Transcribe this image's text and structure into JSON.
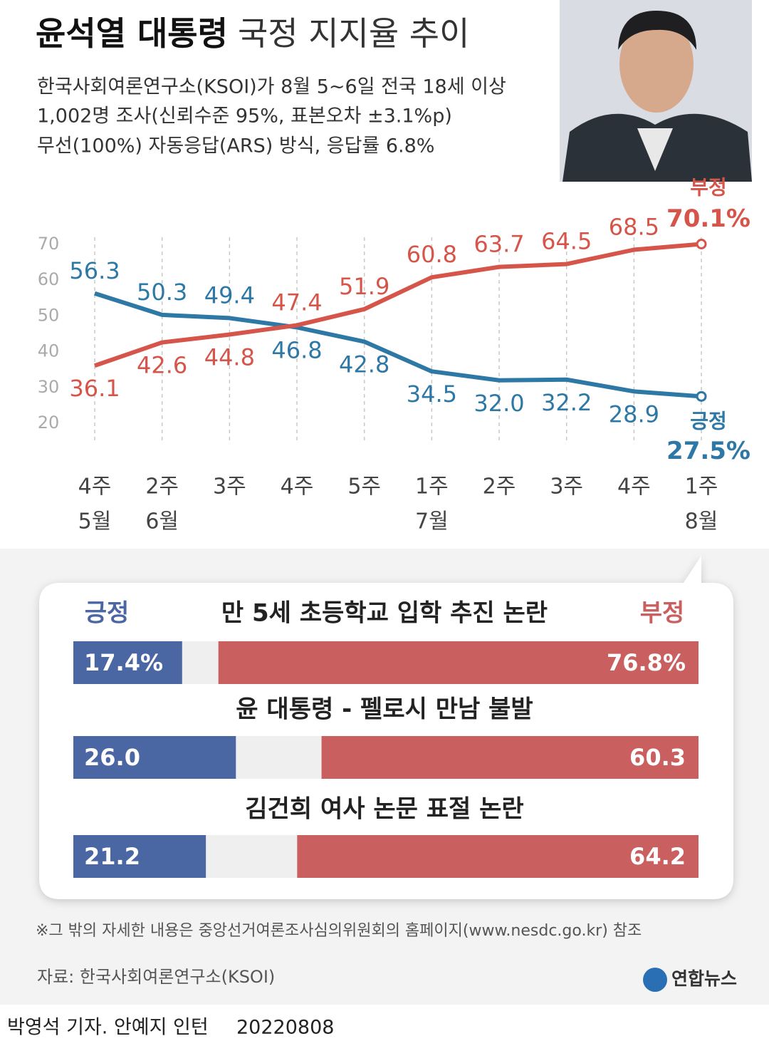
{
  "header": {
    "title_bold": "윤석열 대통령",
    "title_light": "국정 지지율 추이",
    "notes": [
      "한국사회여론연구소(KSOI)가 8월 5~6일 전국 18세 이상",
      "1,002명 조사(신뢰수준 95%, 표본오차 ±3.1%p)",
      "무선(100%) 자동응답(ARS) 방식, 응답률 6.8%"
    ]
  },
  "chart_data": [
    {
      "type": "line",
      "categories": [
        "4주",
        "2주",
        "3주",
        "4주",
        "5주",
        "1주",
        "2주",
        "3주",
        "4주",
        "1주"
      ],
      "months": [
        "5월",
        "6월",
        null,
        null,
        null,
        "7월",
        null,
        null,
        null,
        "8월"
      ],
      "ylim": [
        15,
        72
      ],
      "yticks": [
        20,
        30,
        40,
        50,
        60,
        70
      ],
      "grid": "x",
      "series": [
        {
          "name": "긍정",
          "color": "#2e78a6",
          "values": [
            56.3,
            50.3,
            49.4,
            46.8,
            42.8,
            34.5,
            32.0,
            32.2,
            28.9,
            27.5
          ],
          "value_labels": [
            "56.3",
            "50.3",
            "49.4",
            "46.8",
            "42.8",
            "34.5",
            "32.0",
            "32.2",
            "28.9",
            "27.5%"
          ]
        },
        {
          "name": "부정",
          "color": "#d6554a",
          "values": [
            36.1,
            42.6,
            44.8,
            47.4,
            51.9,
            60.8,
            63.7,
            64.5,
            68.5,
            70.1
          ],
          "value_labels": [
            "36.1",
            "42.6",
            "44.8",
            "47.4",
            "51.9",
            "60.8",
            "63.7",
            "64.5",
            "68.5",
            "70.1%"
          ]
        }
      ]
    },
    {
      "type": "bar",
      "orientation": "horizontal",
      "stacked": true,
      "categories": [
        "만 5세 초등학교 입학 추진 논란",
        "윤 대통령 - 펠로시 만남 불발",
        "김건희 여사 논문 표절 논란"
      ],
      "xlim": [
        0,
        100
      ],
      "series": [
        {
          "name": "긍정",
          "color": "#4a67a3",
          "values": [
            17.4,
            26.0,
            21.2
          ],
          "value_labels": [
            "17.4%",
            "26.0",
            "21.2"
          ]
        },
        {
          "name": "부정",
          "color": "#c95f5f",
          "values": [
            76.8,
            60.3,
            64.2
          ],
          "value_labels": [
            "76.8%",
            "60.3",
            "64.2"
          ]
        }
      ]
    }
  ],
  "footer": {
    "note": "※그 밖의 자세한 내용은 중앙선거여론조사심의위원회의 홈페이지(www.nesdc.go.kr) 참조",
    "source": "자료: 한국사회여론연구소(KSOI)",
    "logo": "연합뉴스",
    "credit": "박영석 기자. 안예지 인턴",
    "date": "20220808"
  }
}
